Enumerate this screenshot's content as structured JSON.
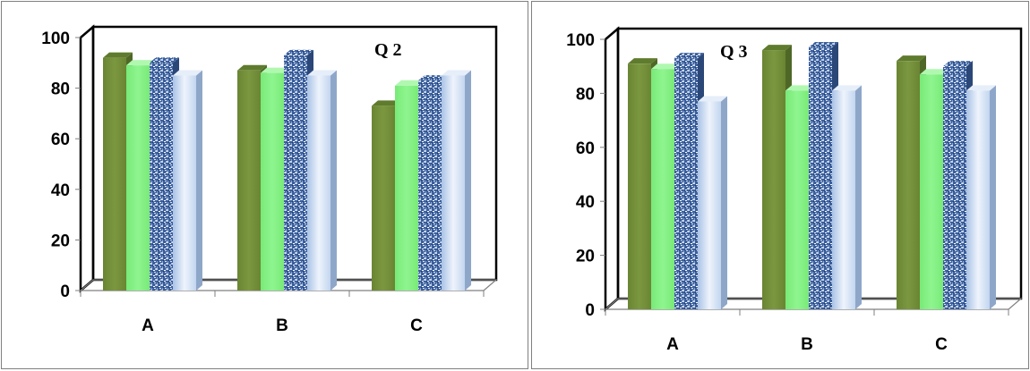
{
  "colors": {
    "series1": "#77933c",
    "series2": "#7ff07f",
    "series3": "#3b5f9c",
    "series4": "#c6d9f1"
  },
  "chart_data": [
    {
      "type": "bar",
      "title": "Q 2",
      "categories": [
        "A",
        "B",
        "C"
      ],
      "series": [
        {
          "values": [
            92,
            87,
            73
          ]
        },
        {
          "values": [
            89,
            86,
            81
          ]
        },
        {
          "values": [
            90,
            93,
            83
          ]
        },
        {
          "values": [
            85,
            85,
            85
          ]
        }
      ],
      "ylim": [
        0,
        100
      ],
      "yticks": [
        "0",
        "20",
        "40",
        "60",
        "80",
        "100"
      ],
      "grid": false,
      "legend": "none"
    },
    {
      "type": "bar",
      "title": "Q 3",
      "categories": [
        "A",
        "B",
        "C"
      ],
      "series": [
        {
          "values": [
            91,
            96,
            92
          ]
        },
        {
          "values": [
            89,
            81,
            87
          ]
        },
        {
          "values": [
            93,
            97,
            90
          ]
        },
        {
          "values": [
            77,
            81,
            81
          ]
        }
      ],
      "ylim": [
        0,
        100
      ],
      "yticks": [
        "0",
        "20",
        "40",
        "60",
        "80",
        "100"
      ],
      "grid": false,
      "legend": "none"
    }
  ]
}
